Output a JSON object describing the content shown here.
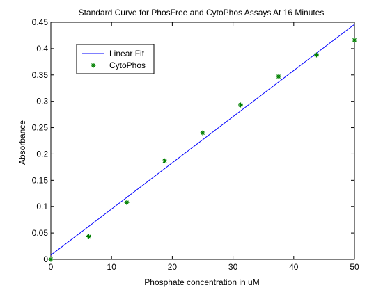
{
  "chart_data": {
    "type": "scatter",
    "title": "Standard Curve for PhosFree and CytoPhos Assays At 16 Minutes",
    "xlabel": "Phosphate concentration in uM",
    "ylabel": "Absorbance",
    "xlim": [
      0,
      50
    ],
    "ylim": [
      0,
      0.45
    ],
    "xticks": [
      "0",
      "10",
      "20",
      "30",
      "40",
      "50"
    ],
    "yticks": [
      "0",
      "0.05",
      "0.1",
      "0.15",
      "0.2",
      "0.25",
      "0.3",
      "0.35",
      "0.4",
      "0.45"
    ],
    "grid": false,
    "legend": {
      "position": "top-left"
    },
    "series": [
      {
        "name": "Linear Fit",
        "kind": "line",
        "color": "#0000ff",
        "x": [
          0,
          50
        ],
        "y": [
          0.008,
          0.446
        ]
      },
      {
        "name": "CytoPhos",
        "kind": "scatter",
        "marker": "asterisk",
        "color": "#008000",
        "x": [
          0,
          6.25,
          12.5,
          18.75,
          25,
          31.25,
          37.5,
          43.75,
          50
        ],
        "y": [
          0.0,
          0.043,
          0.108,
          0.187,
          0.24,
          0.293,
          0.347,
          0.388,
          0.416
        ]
      }
    ]
  }
}
